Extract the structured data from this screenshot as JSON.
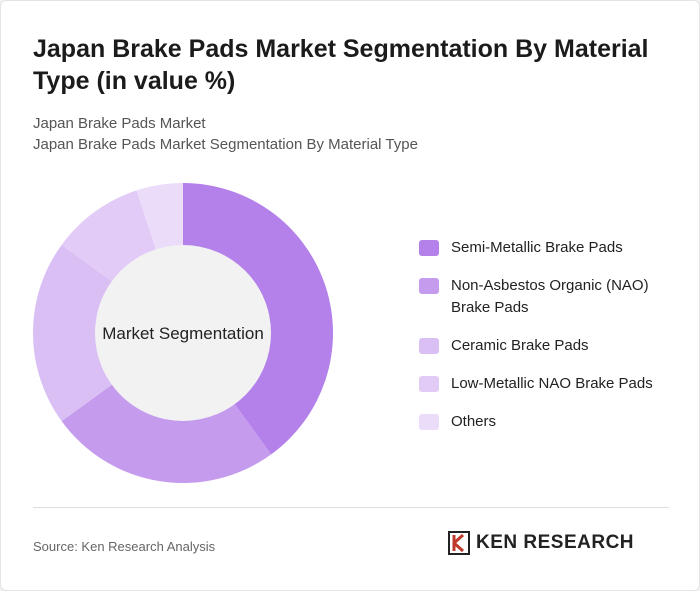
{
  "title": "Japan Brake Pads Market Segmentation By Material Type (in value %)",
  "subtitle1": "Japan Brake Pads Market",
  "subtitle2": "Japan Brake Pads Market Segmentation By Material Type",
  "source": "Source: Ken Research Analysis",
  "logo_text": "KEN RESEARCH",
  "chart_data": {
    "type": "pie",
    "variant": "donut",
    "center_label": "Market Segmentation",
    "categories": [
      "Semi-Metallic Brake Pads",
      "Non-Asbestos Organic (NAO) Brake Pads",
      "Ceramic Brake Pads",
      "Low-Metallic NAO Brake Pads",
      "Others"
    ],
    "values": [
      40,
      25,
      20,
      10,
      5
    ],
    "colors": [
      "#b481ea",
      "#c59bee",
      "#dabff5",
      "#e2ccf7",
      "#ebdcfa"
    ],
    "legend": "right"
  }
}
